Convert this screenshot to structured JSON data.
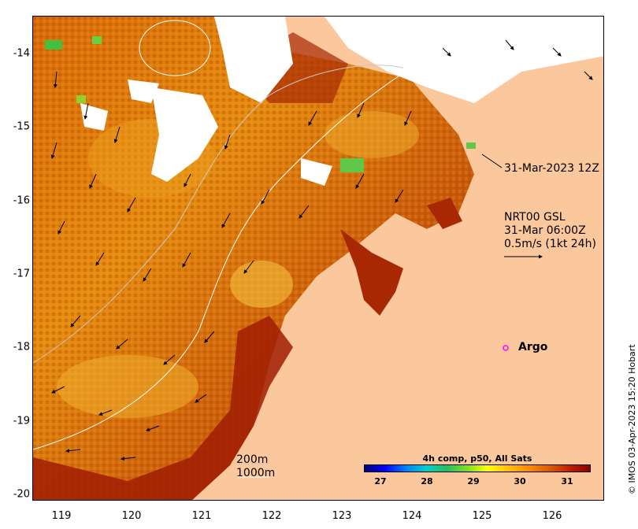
{
  "map": {
    "lon_range": [
      118.6,
      126.7
    ],
    "lat_range": [
      -20.1,
      -13.5
    ],
    "lon_ticks": [
      "119",
      "120",
      "121",
      "122",
      "123",
      "124",
      "125",
      "126"
    ],
    "lat_ticks": [
      "-14",
      "-15",
      "-16",
      "-17",
      "-18",
      "-19",
      "-20"
    ],
    "land_color": "#fbc79c",
    "cloud_color": "#ffffff"
  },
  "annotations": {
    "timestamp": "31-Mar-2023 12Z",
    "current_source": "NRT00 GSL",
    "current_time": "31-Mar 06:00Z",
    "current_scale": "0.5m/s (1kt 24h)",
    "argo_label": "Argo",
    "argo_marker_color": "#ff00ff"
  },
  "depth_legend": {
    "contour_1": "200m",
    "contour_2": "1000m"
  },
  "colorbar": {
    "title": "4h comp, p50, All Sats",
    "ticks": [
      "27",
      "28",
      "29",
      "30",
      "31"
    ],
    "min": 26.5,
    "max": 31.7,
    "colors": [
      "#00007f",
      "#0000ff",
      "#0080ff",
      "#00d0d0",
      "#20c060",
      "#7fdf20",
      "#ffff00",
      "#ffc000",
      "#ff8c00",
      "#e05a00",
      "#c02000",
      "#8b0000"
    ]
  },
  "credit": "© IMOS 03-Apr-2023 15:20 Hobart"
}
